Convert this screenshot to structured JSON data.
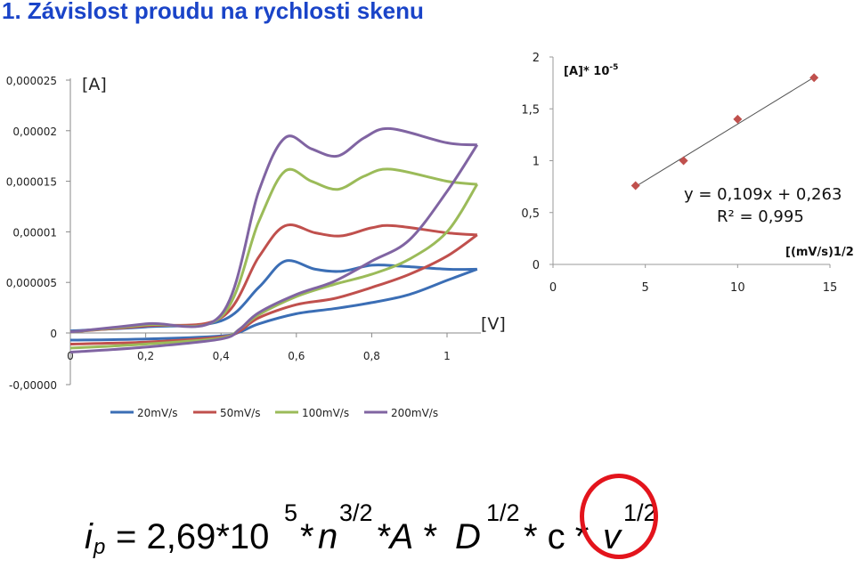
{
  "title": "1. Závislost proudu na rychlosti skenu",
  "colors": {
    "title": "#1a44c8",
    "circle": "#e3141c"
  },
  "chart_data": [
    {
      "type": "line",
      "y_unit": "[A]",
      "x_unit": "[V]",
      "xlim": [
        0,
        1.1
      ],
      "ylim": [
        -1e-05,
        2.5e-05
      ],
      "x_ticks": [
        "0",
        "0,2",
        "0,4",
        "0,6",
        "0,8",
        "1"
      ],
      "y_ticks": [
        "0,000025",
        "0,00002",
        "0,000015",
        "0,00001",
        "0,000005",
        "0",
        "-0,00000"
      ],
      "legend_position": "bottom",
      "series": [
        {
          "name": "20mV/s",
          "color": "#3b6eb5",
          "forward": [
            [
              0,
              2e-07
            ],
            [
              0.2,
              6e-07
            ],
            [
              0.4,
              1.2e-06
            ],
            [
              0.5,
              4.5e-06
            ],
            [
              0.57,
              7.1e-06
            ],
            [
              0.65,
              6.3e-06
            ],
            [
              0.72,
              6.1e-06
            ],
            [
              0.8,
              6.7e-06
            ],
            [
              0.88,
              6.6e-06
            ],
            [
              1.0,
              6.3e-06
            ],
            [
              1.08,
              6.3e-06
            ]
          ],
          "reverse": [
            [
              1.08,
              6.3e-06
            ],
            [
              1.0,
              5.2e-06
            ],
            [
              0.9,
              3.8e-06
            ],
            [
              0.8,
              3e-06
            ],
            [
              0.7,
              2.4e-06
            ],
            [
              0.6,
              1.9e-06
            ],
            [
              0.5,
              9e-07
            ],
            [
              0.45,
              1e-07
            ],
            [
              0.4,
              -3e-07
            ],
            [
              0.2,
              -6e-07
            ],
            [
              0,
              -7e-07
            ]
          ]
        },
        {
          "name": "50mV/s",
          "color": "#c0504d",
          "forward": [
            [
              0,
              1e-07
            ],
            [
              0.2,
              7e-07
            ],
            [
              0.4,
              1.5e-06
            ],
            [
              0.5,
              7.5e-06
            ],
            [
              0.57,
              1.06e-05
            ],
            [
              0.65,
              9.9e-06
            ],
            [
              0.72,
              9.6e-06
            ],
            [
              0.8,
              1.04e-05
            ],
            [
              0.86,
              1.06e-05
            ],
            [
              1.0,
              9.9e-06
            ],
            [
              1.08,
              9.7e-06
            ]
          ],
          "reverse": [
            [
              1.08,
              9.7e-06
            ],
            [
              1.0,
              7.6e-06
            ],
            [
              0.9,
              5.8e-06
            ],
            [
              0.8,
              4.5e-06
            ],
            [
              0.7,
              3.4e-06
            ],
            [
              0.6,
              2.8e-06
            ],
            [
              0.5,
              1.5e-06
            ],
            [
              0.45,
              2e-07
            ],
            [
              0.4,
              -4e-07
            ],
            [
              0.2,
              -9e-07
            ],
            [
              0,
              -1.1e-06
            ]
          ]
        },
        {
          "name": "100mV/s",
          "color": "#9bbb59",
          "forward": [
            [
              0,
              1e-07
            ],
            [
              0.2,
              8e-07
            ],
            [
              0.4,
              1.6e-06
            ],
            [
              0.5,
              1.1e-05
            ],
            [
              0.57,
              1.6e-05
            ],
            [
              0.64,
              1.5e-05
            ],
            [
              0.71,
              1.42e-05
            ],
            [
              0.78,
              1.55e-05
            ],
            [
              0.85,
              1.62e-05
            ],
            [
              1.0,
              1.5e-05
            ],
            [
              1.08,
              1.47e-05
            ]
          ],
          "reverse": [
            [
              1.08,
              1.47e-05
            ],
            [
              1.0,
              1e-05
            ],
            [
              0.9,
              7.3e-06
            ],
            [
              0.8,
              5.8e-06
            ],
            [
              0.7,
              4.8e-06
            ],
            [
              0.6,
              3.6e-06
            ],
            [
              0.5,
              1.8e-06
            ],
            [
              0.45,
              4e-07
            ],
            [
              0.4,
              -5e-07
            ],
            [
              0.2,
              -1.1e-06
            ],
            [
              0,
              -1.5e-06
            ]
          ]
        },
        {
          "name": "200mV/s",
          "color": "#8064a2",
          "forward": [
            [
              0,
              1e-07
            ],
            [
              0.2,
              9e-07
            ],
            [
              0.4,
              1.8e-06
            ],
            [
              0.5,
              1.4e-05
            ],
            [
              0.57,
              1.93e-05
            ],
            [
              0.64,
              1.82e-05
            ],
            [
              0.71,
              1.75e-05
            ],
            [
              0.78,
              1.93e-05
            ],
            [
              0.85,
              2.02e-05
            ],
            [
              1.0,
              1.88e-05
            ],
            [
              1.08,
              1.86e-05
            ]
          ],
          "reverse": [
            [
              1.08,
              1.86e-05
            ],
            [
              1.0,
              1.4e-05
            ],
            [
              0.9,
              9.2e-06
            ],
            [
              0.8,
              7.1e-06
            ],
            [
              0.7,
              5.1e-06
            ],
            [
              0.6,
              3.8e-06
            ],
            [
              0.5,
              2e-06
            ],
            [
              0.45,
              4e-07
            ],
            [
              0.4,
              -6e-07
            ],
            [
              0.2,
              -1.4e-06
            ],
            [
              0,
              -1.9e-06
            ]
          ]
        }
      ]
    },
    {
      "type": "scatter",
      "y_unit": "[A]* 10",
      "y_unit_exp": "-5",
      "x_unit": "[(mV/s)1/2]",
      "xlim": [
        0,
        15
      ],
      "ylim": [
        0,
        2
      ],
      "x_ticks": [
        "0",
        "5",
        "10",
        "15"
      ],
      "y_ticks": [
        "2",
        "1,5",
        "1",
        "0,5",
        "0"
      ],
      "points": [
        [
          4.47,
          0.76
        ],
        [
          7.07,
          1.0
        ],
        [
          10.0,
          1.4
        ],
        [
          14.14,
          1.8
        ]
      ],
      "marker_color": "#c0504d",
      "trendline": {
        "slope": 0.109,
        "intercept": 0.263,
        "equation": "y = 0,109x + 0,263",
        "r2": "R² = 0,995"
      }
    }
  ],
  "formula": {
    "i": "i",
    "p": "p",
    "eq": "= 2,69*10",
    "exp5": "5",
    "star": "*",
    "n": "n",
    "exp32": "3/2",
    "a": "*A * ",
    "d": "D",
    "exp12a": "1/2",
    "c": "* c * ",
    "v": "v",
    "exp12b": "1/2"
  }
}
